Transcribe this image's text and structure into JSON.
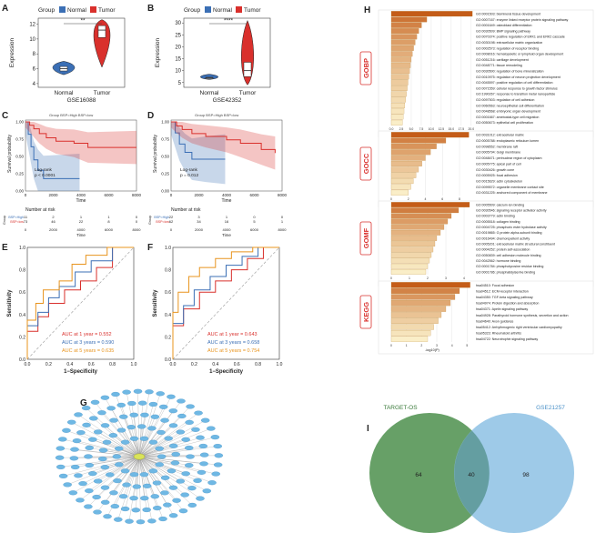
{
  "panels": {
    "a": {
      "letter": "A",
      "legend_title": "Group",
      "legend_items": [
        "Normal",
        "Tumor"
      ],
      "ylabel": "Expression",
      "yticks": [
        "4",
        "6",
        "8",
        "10",
        "12"
      ],
      "xticks": [
        "Normal",
        "Tumor"
      ],
      "dataset": "GSE16088",
      "sig": "**",
      "colors": {
        "normal": "#3b6fb5",
        "tumor": "#d9302c"
      }
    },
    "b": {
      "letter": "B",
      "legend_title": "Group",
      "legend_items": [
        "Normal",
        "Tumor"
      ],
      "ylabel": "Expression",
      "yticks": [
        "5",
        "10",
        "15",
        "20",
        "25",
        "30"
      ],
      "xticks": [
        "Normal",
        "Tumor"
      ],
      "dataset": "GSE42352",
      "sig": "****"
    },
    "c": {
      "letter": "C",
      "legend": "Group  BSP=High  BSP=low",
      "ylabel": "Survival probability",
      "yticks": [
        "0.00",
        "0.25",
        "0.50",
        "0.75",
        "1.00"
      ],
      "xticks": [
        "0",
        "2000",
        "4000",
        "6000",
        "8000"
      ],
      "xlabel": "Time",
      "logrank": "Log-rank",
      "pval": "p < 0.0001",
      "risk_title": "Number at risk",
      "risk_rows": [
        {
          "label": "BSP=High",
          "values": [
            "11",
            "2",
            "1",
            "1",
            "0"
          ]
        },
        {
          "label": "BSP=low",
          "values": [
            "73",
            "46",
            "22",
            "8",
            "0"
          ]
        }
      ],
      "risk_ylabel": "Group"
    },
    "d": {
      "letter": "D",
      "legend": "Group  BSP=High  BSP=low",
      "ylabel": "Survival probability",
      "yticks": [
        "0.00",
        "0.25",
        "0.50",
        "0.75",
        "1.00"
      ],
      "xticks": [
        "0",
        "2000",
        "4000",
        "6000",
        "8000"
      ],
      "xlabel": "Time",
      "logrank": "Log-rank",
      "pval": "p = 0.012",
      "risk_title": "Number at risk",
      "risk_rows": [
        {
          "label": "BSP=High",
          "values": [
            "22",
            "3",
            "1",
            "0",
            "0"
          ]
        },
        {
          "label": "BSP=low",
          "values": [
            "62",
            "34",
            "16",
            "5",
            "1"
          ]
        }
      ],
      "risk_ylabel": "Group"
    },
    "e": {
      "letter": "E",
      "ylabel": "Sensitivity",
      "xlabel": "1−Specificity",
      "ticks": [
        "0.0",
        "0.2",
        "0.4",
        "0.6",
        "0.8",
        "1.0"
      ],
      "auc": [
        "AUC at 1 year = 0.552",
        "AUC at 3 years = 0.590",
        "AUC at 5 years = 0.635"
      ]
    },
    "f": {
      "letter": "F",
      "ylabel": "Sensitivity",
      "xlabel": "1−Specificity",
      "ticks": [
        "0.0",
        "0.2",
        "0.4",
        "0.6",
        "0.8",
        "1.0"
      ],
      "auc": [
        "AUC at 1 year = 0.643",
        "AUC at 3 years = 0.658",
        "AUC at 5 years = 0.754"
      ]
    },
    "g": {
      "letter": "G"
    },
    "h": {
      "letter": "H",
      "xlabel": "-log10(P)",
      "gobp": {
        "tag": "GOBP",
        "ticks": [
          "0.0",
          "2.5",
          "5.0",
          "7.5",
          "10.0",
          "12.5",
          "15.0",
          "17.5",
          "20.0"
        ],
        "terms": [
          "GO:0001503: biomineral tissue development",
          "GO:0007167: enzyme linked receptor protein signaling pathway",
          "GO:0001649: osteoblast differentiation",
          "GO:0030509: BMP signaling pathway",
          "GO:0070374: positive regulation of ERK1 and ERK2 cascade",
          "GO:0030198: extracellular matrix organization",
          "GO:0002573: regulation of receptor binding",
          "GO:0008016: hematopoietic or lymphoid organ development",
          "GO:0051216: cartilage development",
          "GO:0048771: tissue remodeling",
          "GO:0030500: regulation of bone mineralization",
          "GO:0010975: regulation of neuron projection development",
          "GO:0045597: positive regulation of cell differentiation",
          "GO:0071559: cellular response to growth factor stimulus",
          "GO:1990267: response to transition metal nanoparticle",
          "GO:0097503: regulation of cell adhesion",
          "GO:0060563: neuroepithelial cell differentiation",
          "GO:0048568: embryonic organ development",
          "GO:0001667: ameboidal-type cell migration",
          "GO:0050673: epithelial cell proliferation"
        ],
        "values": [
          20.3,
          8.9,
          7.6,
          6.9,
          6.4,
          6.0,
          5.6,
          5.3,
          5.0,
          4.8,
          4.6,
          4.4,
          4.2,
          4.0,
          3.8,
          3.6,
          3.4,
          3.2,
          3.0,
          2.8
        ]
      },
      "gocc": {
        "tag": "GOCC",
        "ticks": [
          "0",
          "2",
          "4",
          "6",
          "8"
        ],
        "terms": [
          "GO:0031012: extracellular matrix",
          "GO:0005788: endoplasmic reticulum lumen",
          "GO:0098552: membrane raft",
          "GO:0005794: Golgi membrane",
          "GO:0048471: perinuclear region of cytoplasm",
          "GO:0005775: apical part of cell",
          "GO:0030426: growth cone",
          "GO:0005925: focal adhesion",
          "GO:0015629: actin cytoskeleton",
          "GO:0099572: organelle membrane contact site",
          "GO:0031225: anchored component of membrane"
        ],
        "values": [
          9.1,
          6.4,
          5.3,
          4.6,
          4.0,
          3.6,
          3.2,
          2.9,
          2.6,
          2.3,
          2.0
        ]
      },
      "gomf": {
        "tag": "GOMF",
        "ticks": [
          "0",
          "1",
          "2",
          "3",
          "4"
        ],
        "terms": [
          "GO:0005509: calcium ion binding",
          "GO:0030546: signaling receptor activator activity",
          "GO:0003779: actin binding",
          "GO:0005518: collagen binding",
          "GO:0004725: phosphoric ester hydrolase activity",
          "GO:0019865: G protein alpha-subunit binding",
          "GO:0016494: chemorepellent activity",
          "GO:0005201: extracellular matrix structural constituent",
          "GO:0004252: protein self-association",
          "GO:0050839: cell adhesion molecule binding",
          "GO:0042562: hormone binding",
          "GO:0001784: phosphotyrosine residue binding",
          "GO:0001786: phosphatidylserine binding"
        ],
        "values": [
          4.3,
          3.7,
          3.3,
          3.1,
          2.9,
          2.7,
          2.5,
          2.4,
          2.3,
          2.2,
          2.1,
          2.0,
          1.9
        ]
      },
      "kegg": {
        "tag": "KEGG",
        "ticks": [
          "0",
          "1",
          "2",
          "3",
          "4",
          "5"
        ],
        "terms": [
          "hsa04510: Focal adhesion",
          "hsa04512: ECM-receptor interaction",
          "hsa04350: TGF-beta signaling pathway",
          "hsa04974: Protein digestion and absorption",
          "hsa04371: Apelin signaling pathway",
          "hsa04928: Parathyroid hormone synthesis, secretion and action",
          "hsa04640: Axon guidance",
          "hsa05412: Arrhythmogenic right ventricular cardiomyopathy",
          "hsa05323: Rheumatoid arthritis",
          "hsa04722: Neurotrophin signaling pathway"
        ],
        "values": [
          5.2,
          4.5,
          4.2,
          3.9,
          3.6,
          3.3,
          3.1,
          2.8,
          2.6,
          2.4
        ]
      }
    },
    "i": {
      "letter": "I",
      "left_label": "TARGET-OS",
      "right_label": "GSE21257",
      "left_count": "64",
      "overlap_count": "40",
      "right_count": "98",
      "colors": {
        "left": "#5f9b5f",
        "right": "#93c4e6"
      }
    }
  },
  "chart_data": [
    {
      "type": "box",
      "panel": "A",
      "title": "GSE16088",
      "categories": [
        "Normal",
        "Tumor"
      ],
      "medians": [
        6.0,
        11.2
      ],
      "q1": [
        5.7,
        10.2
      ],
      "q3": [
        6.3,
        11.8
      ],
      "ylabel": "Expression",
      "ylim": [
        3.5,
        12.8
      ],
      "significance": "**"
    },
    {
      "type": "box",
      "panel": "B",
      "title": "GSE42352",
      "categories": [
        "Normal",
        "Tumor"
      ],
      "medians": [
        7.0,
        10.0
      ],
      "q1": [
        6.8,
        7.5
      ],
      "q3": [
        7.2,
        13.5
      ],
      "ylabel": "Expression",
      "ylim": [
        3,
        32
      ],
      "significance": "****"
    },
    {
      "type": "line",
      "panel": "C",
      "xlabel": "Time",
      "ylabel": "Survival probability",
      "xlim": [
        0,
        8000
      ],
      "ylim": [
        0,
        1
      ],
      "pvalue": "p < 0.0001",
      "series": [
        {
          "name": "BSP=High",
          "x": [
            0,
            200,
            400,
            600,
            900,
            1300,
            3900
          ],
          "y": [
            1.0,
            0.82,
            0.64,
            0.45,
            0.3,
            0.18,
            0.18
          ]
        },
        {
          "name": "BSP=low",
          "x": [
            0,
            300,
            600,
            1000,
            1500,
            2200,
            3500,
            4500,
            8000
          ],
          "y": [
            1.0,
            0.95,
            0.9,
            0.83,
            0.77,
            0.72,
            0.69,
            0.63,
            0.63
          ]
        }
      ]
    },
    {
      "type": "line",
      "panel": "D",
      "xlabel": "Time",
      "ylabel": "Survival probability",
      "xlim": [
        0,
        8000
      ],
      "ylim": [
        0,
        1
      ],
      "pvalue": "p = 0.012",
      "series": [
        {
          "name": "BSP=High",
          "x": [
            0,
            300,
            600,
            1000,
            1500,
            2500,
            3900
          ],
          "y": [
            1.0,
            0.84,
            0.68,
            0.56,
            0.46,
            0.46,
            0.46
          ]
        },
        {
          "name": "BSP=low",
          "x": [
            0,
            400,
            800,
            1500,
            2500,
            4000,
            5000,
            6500,
            7500
          ],
          "y": [
            1.0,
            0.94,
            0.89,
            0.83,
            0.79,
            0.74,
            0.69,
            0.6,
            0.55
          ]
        }
      ]
    },
    {
      "type": "line",
      "panel": "E",
      "xlabel": "1−Specificity",
      "ylabel": "Sensitivity",
      "series": [
        {
          "name": "AUC at 1 year = 0.552",
          "x": [
            0,
            0.1,
            0.2,
            0.35,
            0.5,
            0.65,
            0.8,
            1.0
          ],
          "y": [
            0,
            0.25,
            0.38,
            0.5,
            0.62,
            0.7,
            0.82,
            1.0
          ]
        },
        {
          "name": "AUC at 3 years = 0.590",
          "x": [
            0,
            0.1,
            0.2,
            0.3,
            0.45,
            0.6,
            0.8,
            1.0
          ],
          "y": [
            0,
            0.3,
            0.42,
            0.55,
            0.65,
            0.78,
            0.88,
            1.0
          ]
        },
        {
          "name": "AUC at 5 years = 0.635",
          "x": [
            0,
            0.08,
            0.15,
            0.3,
            0.42,
            0.55,
            0.75,
            1.0
          ],
          "y": [
            0,
            0.35,
            0.5,
            0.62,
            0.7,
            0.85,
            0.93,
            1.0
          ]
        }
      ]
    },
    {
      "type": "line",
      "panel": "F",
      "xlabel": "1−Specificity",
      "ylabel": "Sensitivity",
      "series": [
        {
          "name": "AUC at 1 year = 0.643",
          "x": [
            0,
            0.1,
            0.25,
            0.4,
            0.55,
            0.7,
            0.85,
            1.0
          ],
          "y": [
            0,
            0.3,
            0.45,
            0.6,
            0.7,
            0.8,
            0.9,
            1.0
          ]
        },
        {
          "name": "AUC at 3 years = 0.658",
          "x": [
            0,
            0.1,
            0.2,
            0.35,
            0.5,
            0.65,
            0.8,
            1.0
          ],
          "y": [
            0,
            0.32,
            0.48,
            0.62,
            0.74,
            0.84,
            0.92,
            1.0
          ]
        },
        {
          "name": "AUC at 5 years = 0.754",
          "x": [
            0,
            0.05,
            0.15,
            0.25,
            0.4,
            0.55,
            0.75,
            1.0
          ],
          "y": [
            0,
            0.42,
            0.6,
            0.74,
            0.82,
            0.9,
            0.96,
            1.0
          ]
        }
      ]
    }
  ]
}
